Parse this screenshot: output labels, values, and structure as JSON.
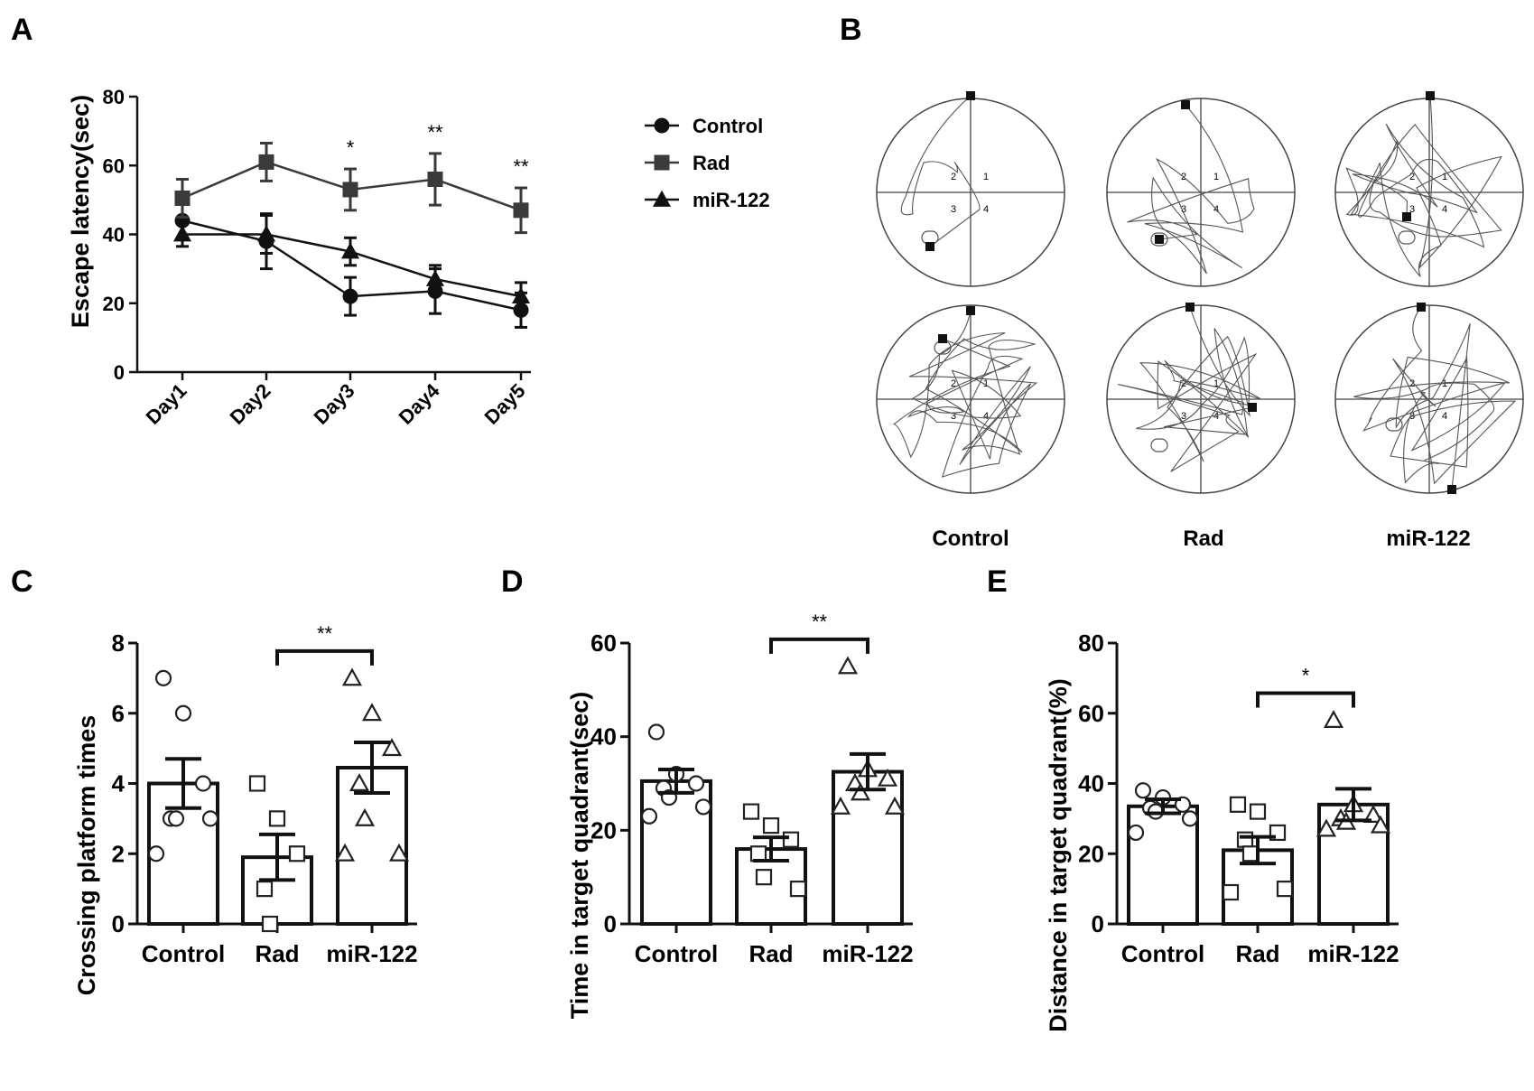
{
  "panel_labels": [
    "A",
    "B",
    "C",
    "D",
    "E"
  ],
  "chart_data": [
    {
      "panel": "A",
      "type": "line",
      "ylabel": "Escape latency(sec)",
      "xlabel": "",
      "categories": [
        "Day1",
        "Day2",
        "Day3",
        "Day4",
        "Day5"
      ],
      "ylim": [
        0,
        80
      ],
      "yticks": [
        "0",
        "20",
        "40",
        "60",
        "80"
      ],
      "legend_position": "right",
      "series": [
        {
          "name": "Control",
          "marker": "circle",
          "values": [
            44,
            38,
            22,
            23.5,
            18
          ],
          "errors": [
            5,
            8,
            5.5,
            6.5,
            5
          ]
        },
        {
          "name": "Rad",
          "marker": "square",
          "values": [
            50.5,
            61,
            53,
            56,
            47
          ],
          "errors": [
            5.5,
            5.5,
            6,
            7.5,
            6.5
          ]
        },
        {
          "name": "miR-122",
          "marker": "triangle",
          "values": [
            40,
            40,
            35,
            27,
            22
          ],
          "errors": [
            3.5,
            5.5,
            4,
            4,
            4
          ]
        }
      ],
      "significance": [
        {
          "category": "Day3",
          "label": "*"
        },
        {
          "category": "Day4",
          "label": "**"
        },
        {
          "category": "Day5",
          "label": "**"
        }
      ]
    },
    {
      "panel": "C",
      "type": "bar",
      "ylabel": "Crossing platform times",
      "categories": [
        "Control",
        "Rad",
        "miR-122"
      ],
      "ylim": [
        0,
        8
      ],
      "yticks": [
        "0",
        "2",
        "4",
        "6",
        "8"
      ],
      "values": [
        4,
        1.9,
        4.45
      ],
      "errors": [
        0.7,
        0.65,
        0.72
      ],
      "points": [
        [
          7,
          6,
          4,
          3,
          3,
          3,
          2
        ],
        [
          4,
          3,
          2,
          1,
          0
        ],
        [
          7,
          6,
          5,
          4,
          3,
          2,
          2
        ]
      ],
      "markers": [
        "circle",
        "square",
        "triangle"
      ],
      "significance": {
        "from": "Rad",
        "to": "miR-122",
        "label": "**"
      }
    },
    {
      "panel": "D",
      "type": "bar",
      "ylabel": "Time in target quadrant(sec)",
      "categories": [
        "Control",
        "Rad",
        "miR-122"
      ],
      "ylim": [
        0,
        60
      ],
      "yticks": [
        "0",
        "20",
        "40",
        "60"
      ],
      "values": [
        30.5,
        16,
        32.5
      ],
      "errors": [
        2.5,
        2.5,
        3.8
      ],
      "points": [
        [
          41,
          32,
          30,
          29,
          27,
          25,
          23
        ],
        [
          24,
          21,
          18,
          15,
          10,
          7.5
        ],
        [
          55,
          33,
          31,
          30,
          28,
          25,
          25
        ]
      ],
      "markers": [
        "circle",
        "square",
        "triangle"
      ],
      "significance": {
        "from": "Rad",
        "to": "miR-122",
        "label": "**"
      }
    },
    {
      "panel": "E",
      "type": "bar",
      "ylabel": "Distance in target quadrant(%)",
      "categories": [
        "Control",
        "Rad",
        "miR-122"
      ],
      "ylim": [
        0,
        80
      ],
      "yticks": [
        "0",
        "20",
        "40",
        "60",
        "80"
      ],
      "values": [
        33.5,
        21,
        34
      ],
      "errors": [
        2,
        3.8,
        4.5
      ],
      "points": [
        [
          38,
          36,
          34,
          33,
          32,
          30,
          26
        ],
        [
          34,
          32,
          26,
          24,
          20,
          10,
          9
        ],
        [
          58,
          34,
          31,
          30,
          29,
          28,
          27
        ]
      ],
      "markers": [
        "circle",
        "square",
        "triangle"
      ],
      "significance": {
        "from": "Rad",
        "to": "miR-122",
        "label": "*"
      }
    }
  ],
  "maze": {
    "labels": [
      "Control",
      "Rad",
      "miR-122"
    ],
    "quadrant_numbers": [
      "2",
      "1",
      "3",
      "4"
    ]
  }
}
